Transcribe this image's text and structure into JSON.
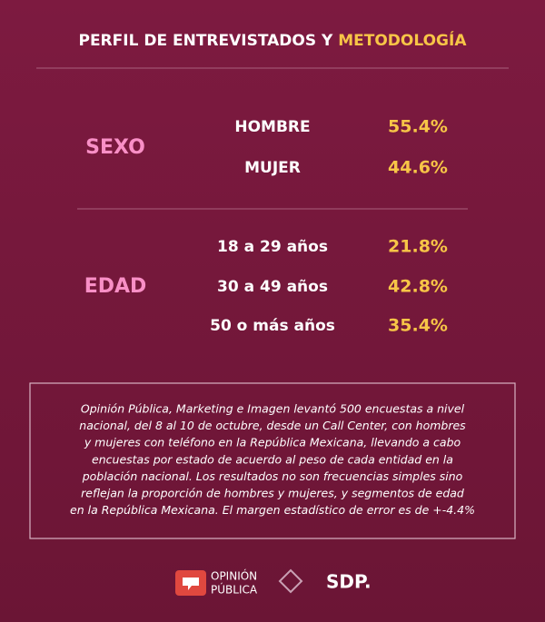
{
  "header": {
    "title": "PERFIL DE ENTREVISTADOS Y ",
    "title_highlight": "METODOLOGÍA"
  },
  "sections": [
    {
      "label": "SEXO",
      "rows": [
        [
          "HOMBRE",
          "55.4%"
        ],
        [
          "MUJER",
          "44.6%"
        ]
      ]
    },
    {
      "label": "EDAD",
      "rows": [
        [
          "18 a 29 años",
          "21.8%"
        ],
        [
          "30 a 49 años",
          "42.8%"
        ],
        [
          "50 o más años",
          "35.4%"
        ]
      ]
    }
  ],
  "methodology": {
    "lines": [
      "Opinión Pública, Marketing e Imagen levantó 500 encuestas a nivel",
      "nacional, del 8 al 10 de octubre, desde un Call Center, con hombres",
      "y mujeres con teléfono en la República Mexicana, llevando a cabo",
      "encuestas por estado de acuerdo al peso de cada entidad en la",
      "población nacional. Los resultados no son frecuencias simples sino",
      "reflejan la proporción de hombres y mujeres, y segmentos de edad",
      "en la República Mexicana. El margen estadístico de error es de +-4.4%"
    ]
  },
  "footer": {
    "logo1_top": "OPINIÓN",
    "logo1_bottom": "PÚBLICA",
    "logo3": "SDP."
  }
}
